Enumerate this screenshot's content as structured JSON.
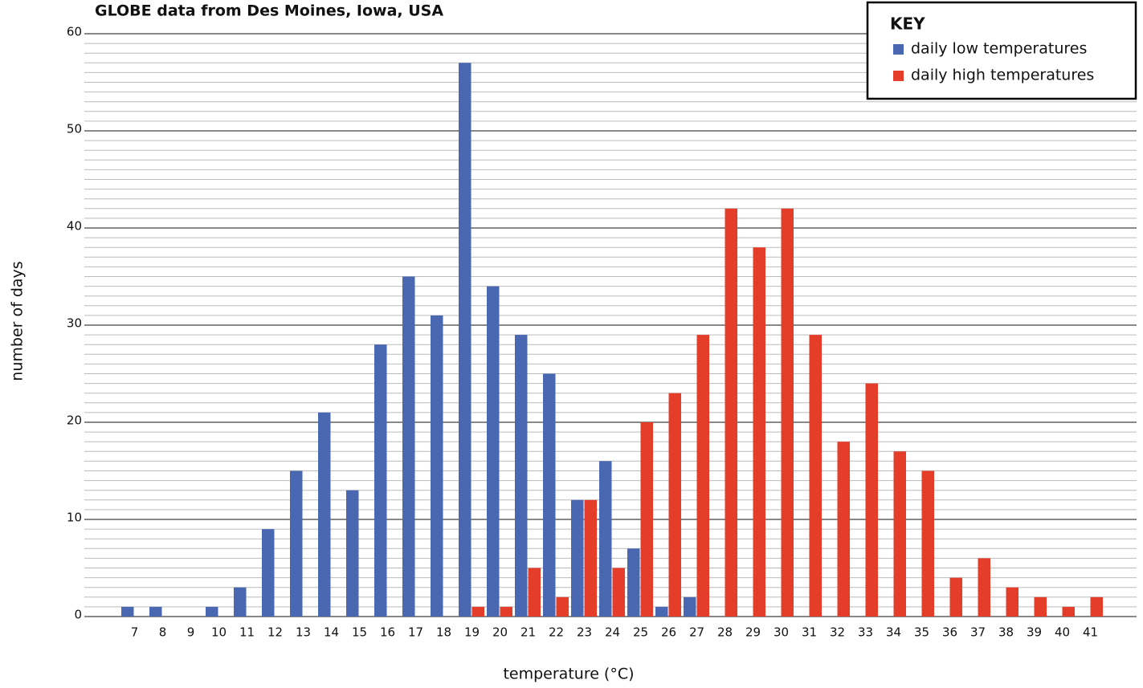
{
  "chart_data": {
    "type": "bar",
    "title": "GLOBE data from Des Moines, Iowa, USA",
    "x_label": "temperature (°C)",
    "y_label": "number of days",
    "legend_title": "KEY",
    "legend": "top-right",
    "categories": [
      "7",
      "8",
      "9",
      "10",
      "11",
      "12",
      "13",
      "14",
      "15",
      "16",
      "17",
      "18",
      "19",
      "20",
      "21",
      "22",
      "23",
      "24",
      "25",
      "26",
      "27",
      "28",
      "29",
      "30",
      "31",
      "32",
      "33",
      "34",
      "35",
      "36",
      "37",
      "38",
      "39",
      "40",
      "41"
    ],
    "series": [
      {
        "name": "daily low temperatures",
        "color": "#4a67b2",
        "values": [
          1,
          1,
          0,
          1,
          3,
          9,
          15,
          21,
          13,
          28,
          35,
          31,
          57,
          34,
          29,
          25,
          12,
          16,
          7,
          1,
          2,
          0,
          0,
          0,
          0,
          0,
          0,
          0,
          0,
          0,
          0,
          0,
          0,
          0,
          0
        ]
      },
      {
        "name": "daily high temperatures",
        "color": "#e43d2a",
        "values": [
          0,
          0,
          0,
          0,
          0,
          0,
          0,
          0,
          0,
          0,
          0,
          0,
          1,
          1,
          5,
          2,
          12,
          5,
          20,
          23,
          29,
          42,
          38,
          42,
          29,
          18,
          24,
          17,
          15,
          4,
          6,
          3,
          2,
          1,
          2
        ]
      }
    ],
    "ylim": [
      0,
      60
    ],
    "yticks": [
      0,
      10,
      20,
      30,
      40,
      50,
      60
    ],
    "grid": true,
    "minor_grid_step": 1
  }
}
